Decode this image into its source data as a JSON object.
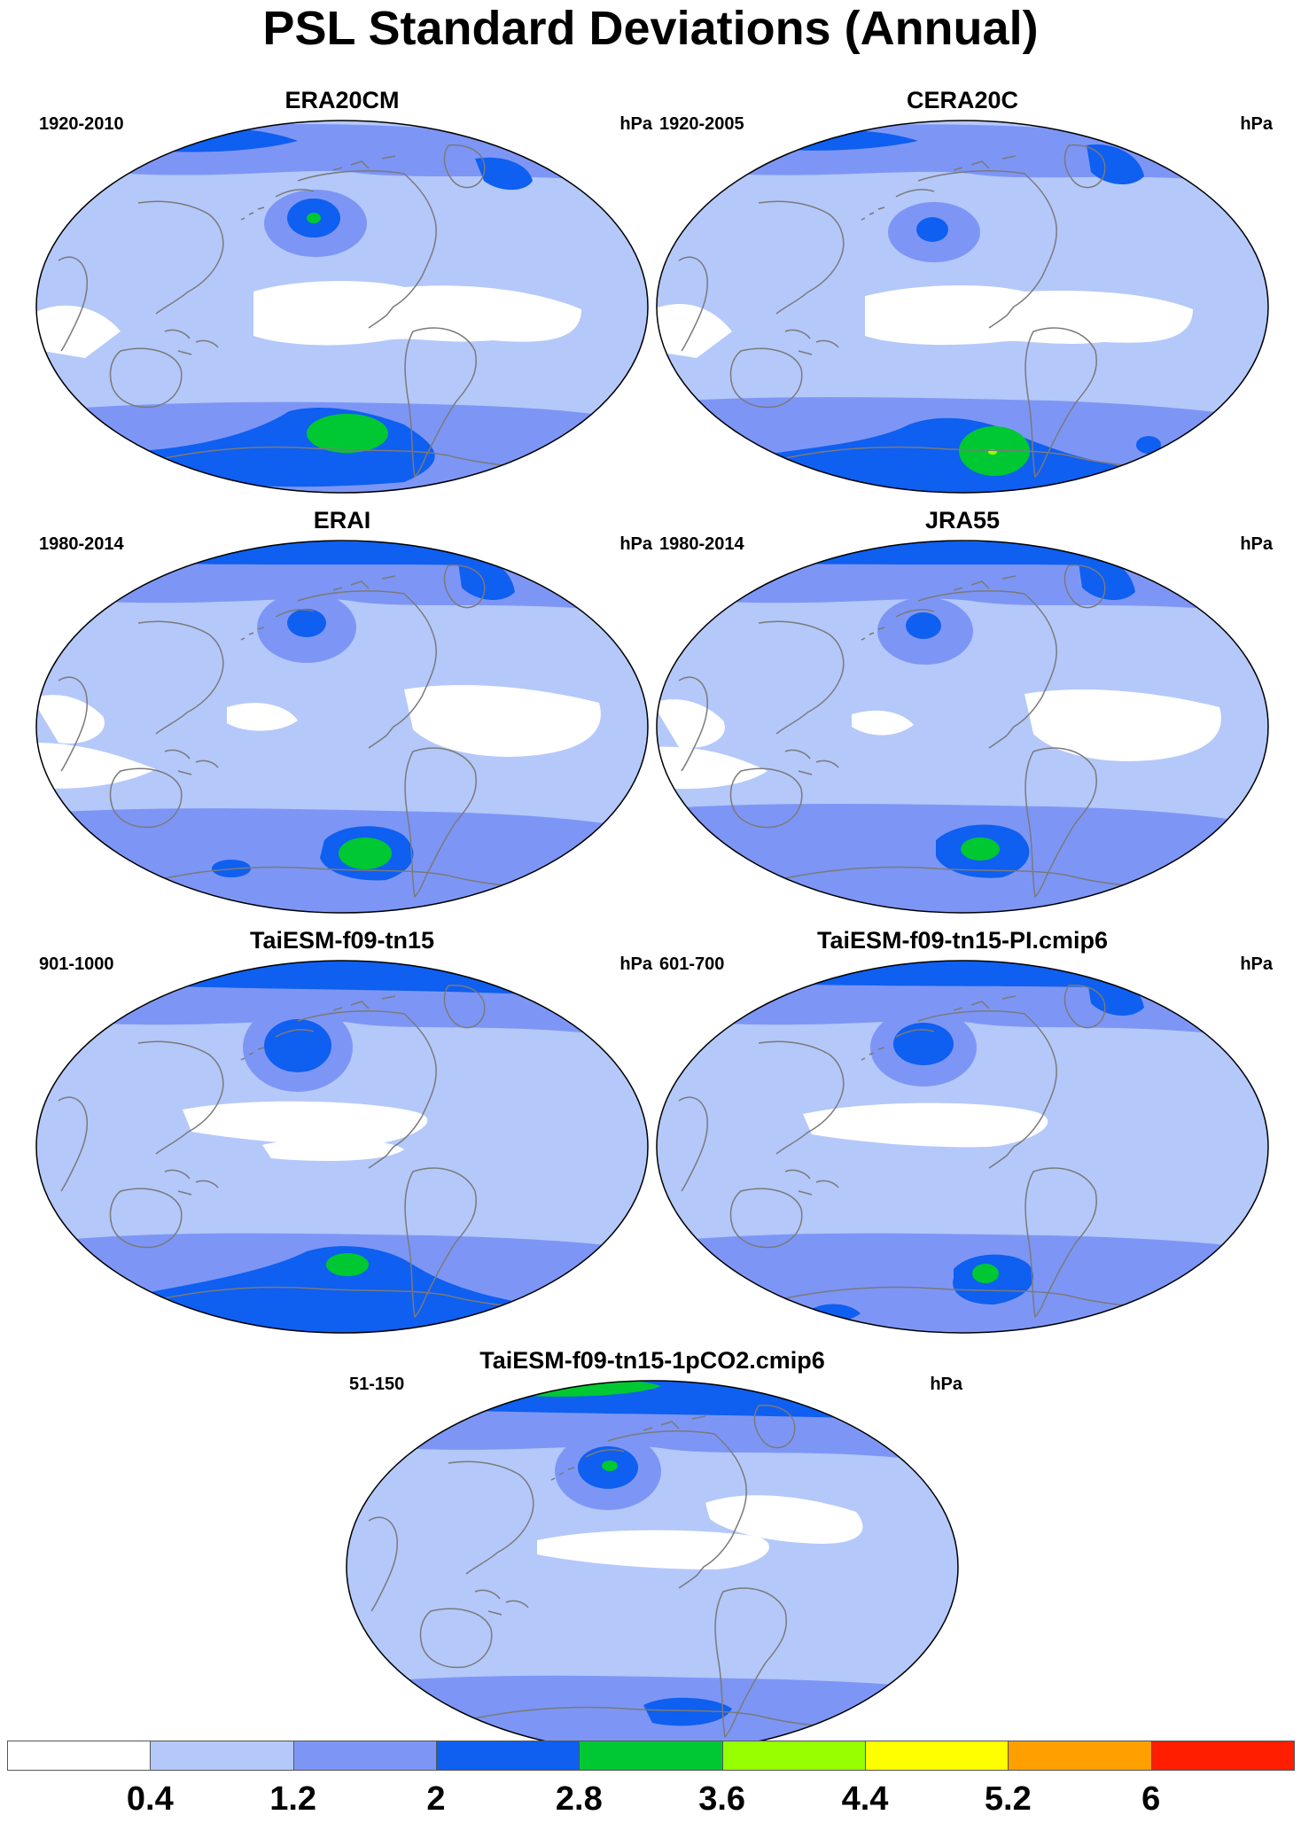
{
  "title": "PSL Standard Deviations (Annual)",
  "units": "hPa",
  "colors": {
    "c0": "#ffffff",
    "c1": "#b4c8fa",
    "c2": "#7d96f5",
    "c3": "#0f5ff0",
    "c4": "#00c832",
    "c5": "#96ff00",
    "c6": "#ffff00",
    "c7": "#ffa000",
    "c8": "#ff1e00",
    "coast": "#7a7a7a"
  },
  "colorbar": {
    "levels": [
      "0.4",
      "1.2",
      "2",
      "2.8",
      "3.6",
      "4.4",
      "5.2",
      "6"
    ],
    "colors": [
      "#ffffff",
      "#b4c8fa",
      "#7d96f5",
      "#0f5ff0",
      "#00c832",
      "#96ff00",
      "#ffff00",
      "#ffa000",
      "#ff1e00"
    ]
  },
  "panels": [
    {
      "id": "era20cm",
      "title": "ERA20CM",
      "period": "1920-2010",
      "units": "hPa"
    },
    {
      "id": "cera20c",
      "title": "CERA20C",
      "period": "1920-2005",
      "units": "hPa"
    },
    {
      "id": "erai",
      "title": "ERAI",
      "period": "1980-2014",
      "units": "hPa"
    },
    {
      "id": "jra55",
      "title": "JRA55",
      "period": "1980-2014",
      "units": "hPa"
    },
    {
      "id": "taiesm",
      "title": "TaiESM-f09-tn15",
      "period": "901-1000",
      "units": "hPa"
    },
    {
      "id": "taiesm-pi",
      "title": "TaiESM-f09-tn15-PI.cmip6",
      "period": "601-700",
      "units": "hPa"
    },
    {
      "id": "taiesm-1pco2",
      "title": "TaiESM-f09-tn15-1pCO2.cmip6",
      "period": "51-150",
      "units": "hPa"
    }
  ]
}
